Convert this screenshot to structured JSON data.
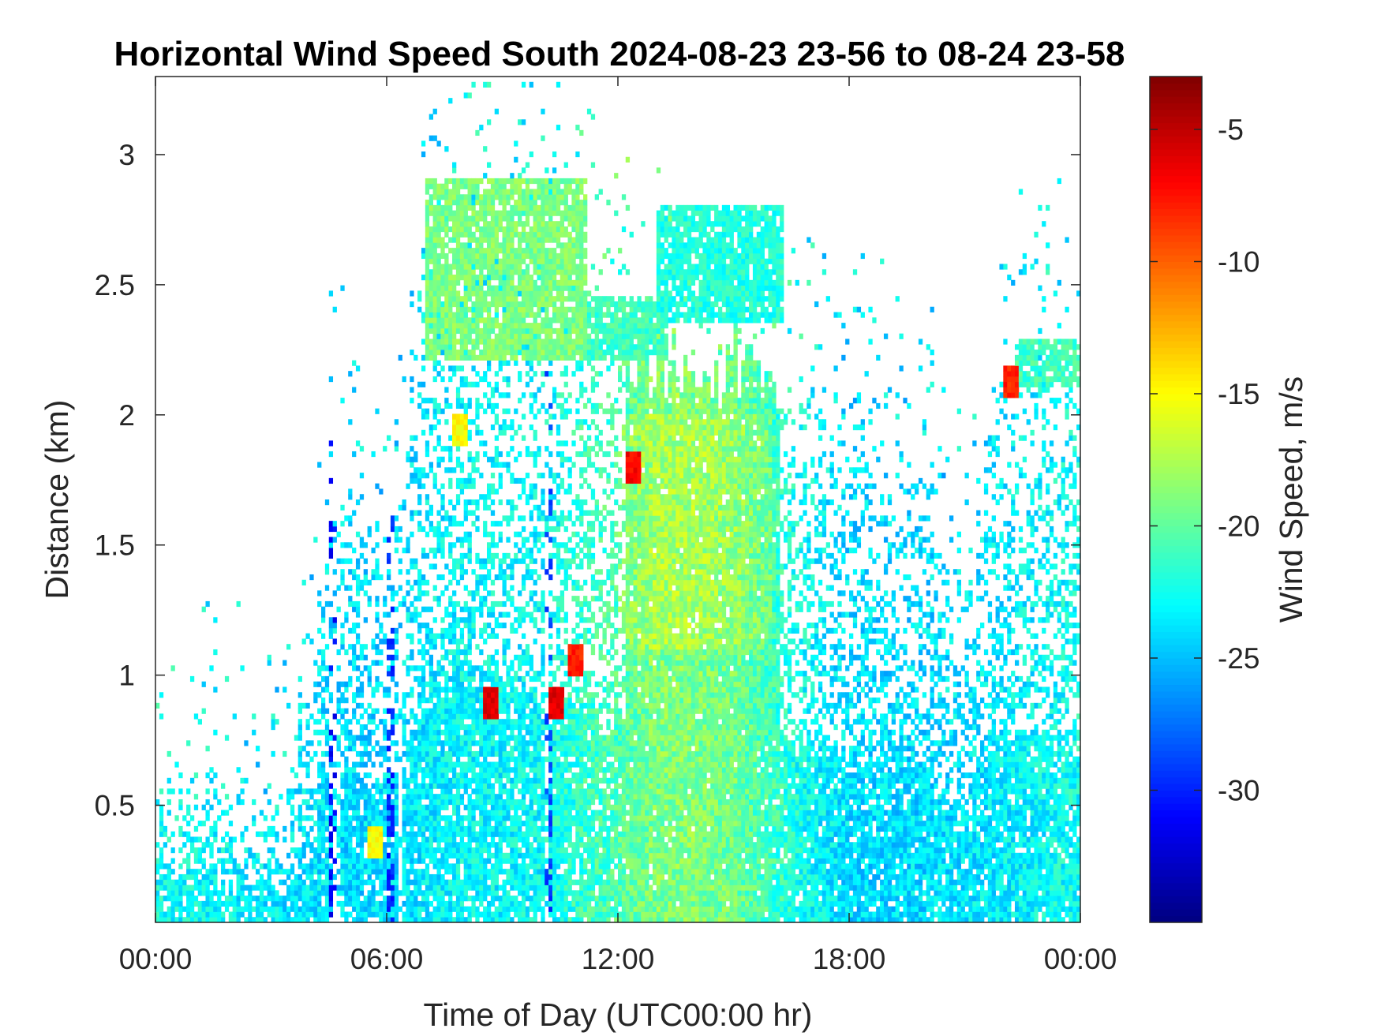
{
  "chart_data": {
    "type": "heatmap",
    "title": "Horizontal Wind Speed South 2024-08-23 23-56 to 08-24 23-58",
    "xlabel": "Time of Day (UTC00:00 hr)",
    "ylabel": "Distance (km)",
    "x_ticks": [
      "00:00",
      "06:00",
      "12:00",
      "18:00",
      "00:00"
    ],
    "x_range_hours": [
      0,
      24
    ],
    "y_ticks": [
      "0.5",
      "1",
      "1.5",
      "2",
      "2.5",
      "3"
    ],
    "y_tick_values": [
      0.5,
      1,
      1.5,
      2,
      2.5,
      3
    ],
    "ylim": [
      0.05,
      3.3
    ],
    "grid": false,
    "colorbar": {
      "label": "Wind Speed, m/s",
      "ticks": [
        "-5",
        "-10",
        "-15",
        "-20",
        "-25",
        "-30"
      ],
      "tick_values": [
        -5,
        -10,
        -15,
        -20,
        -25,
        -30
      ],
      "range": [
        -35,
        -3
      ],
      "colormap": "jet"
    },
    "fields": {
      "cloud_top_km": [
        [
          0,
          0.55
        ],
        [
          1,
          0.6
        ],
        [
          2,
          0.6
        ],
        [
          3,
          0.5
        ],
        [
          4,
          0.85
        ],
        [
          4.5,
          1.75
        ],
        [
          5,
          1.8
        ],
        [
          6,
          1.6
        ],
        [
          6.5,
          1.7
        ],
        [
          7,
          2.85
        ],
        [
          8,
          2.95
        ],
        [
          9,
          2.85
        ],
        [
          10,
          2.5
        ],
        [
          11,
          2.6
        ],
        [
          12,
          2.3
        ],
        [
          13,
          2.2
        ],
        [
          14,
          2.2
        ],
        [
          15,
          2.2
        ],
        [
          16,
          2.1
        ],
        [
          17,
          2.1
        ],
        [
          18,
          2.05
        ],
        [
          19,
          1.9
        ],
        [
          20,
          1.8
        ],
        [
          21,
          1.3
        ],
        [
          22,
          2.25
        ],
        [
          23,
          2.25
        ],
        [
          24,
          2.15
        ]
      ],
      "speed_core": [
        [
          0,
          -22.5
        ],
        [
          3,
          -23.5
        ],
        [
          5,
          -24
        ],
        [
          6,
          -24
        ],
        [
          8,
          -23
        ],
        [
          10,
          -23
        ],
        [
          11,
          -21.5
        ],
        [
          12,
          -20.5
        ],
        [
          13,
          -19
        ],
        [
          14,
          -19
        ],
        [
          15,
          -19.5
        ],
        [
          16,
          -21
        ],
        [
          17,
          -23
        ],
        [
          18,
          -24
        ],
        [
          20,
          -24
        ],
        [
          22,
          -23.5
        ],
        [
          24,
          -22.5
        ]
      ]
    },
    "features": [
      {
        "kind": "upper_layer",
        "x": [
          7,
          11.2
        ],
        "y": [
          2.2,
          2.9
        ],
        "speed": -19
      },
      {
        "kind": "upper_layer",
        "x": [
          11.2,
          13.3
        ],
        "y": [
          2.2,
          2.45
        ],
        "speed": -21
      },
      {
        "kind": "upper_layer",
        "x": [
          13,
          16.3
        ],
        "y": [
          2.35,
          2.8
        ],
        "speed": -22
      },
      {
        "kind": "upper_layer",
        "x": [
          22.3,
          24
        ],
        "y": [
          2.1,
          2.3
        ],
        "speed": -21
      },
      {
        "kind": "blob",
        "x": 12.4,
        "y": 1.8,
        "speed": -7
      },
      {
        "kind": "blob",
        "x": 10.9,
        "y": 1.05,
        "speed": -8
      },
      {
        "kind": "blob",
        "x": 10.4,
        "y": 0.9,
        "speed": -6
      },
      {
        "kind": "blob",
        "x": 8.7,
        "y": 0.9,
        "speed": -6
      },
      {
        "kind": "blob",
        "x": 22.2,
        "y": 2.13,
        "speed": -8
      },
      {
        "kind": "blob",
        "x": 5.7,
        "y": 0.35,
        "speed": -15
      },
      {
        "kind": "blob",
        "x": 7.9,
        "y": 1.95,
        "speed": -15
      },
      {
        "kind": "stripe",
        "x": 4.6,
        "speed": -31
      },
      {
        "kind": "stripe",
        "x": 10.2,
        "speed": -29
      },
      {
        "kind": "stripe",
        "x": 6.1,
        "speed": -30
      }
    ]
  }
}
